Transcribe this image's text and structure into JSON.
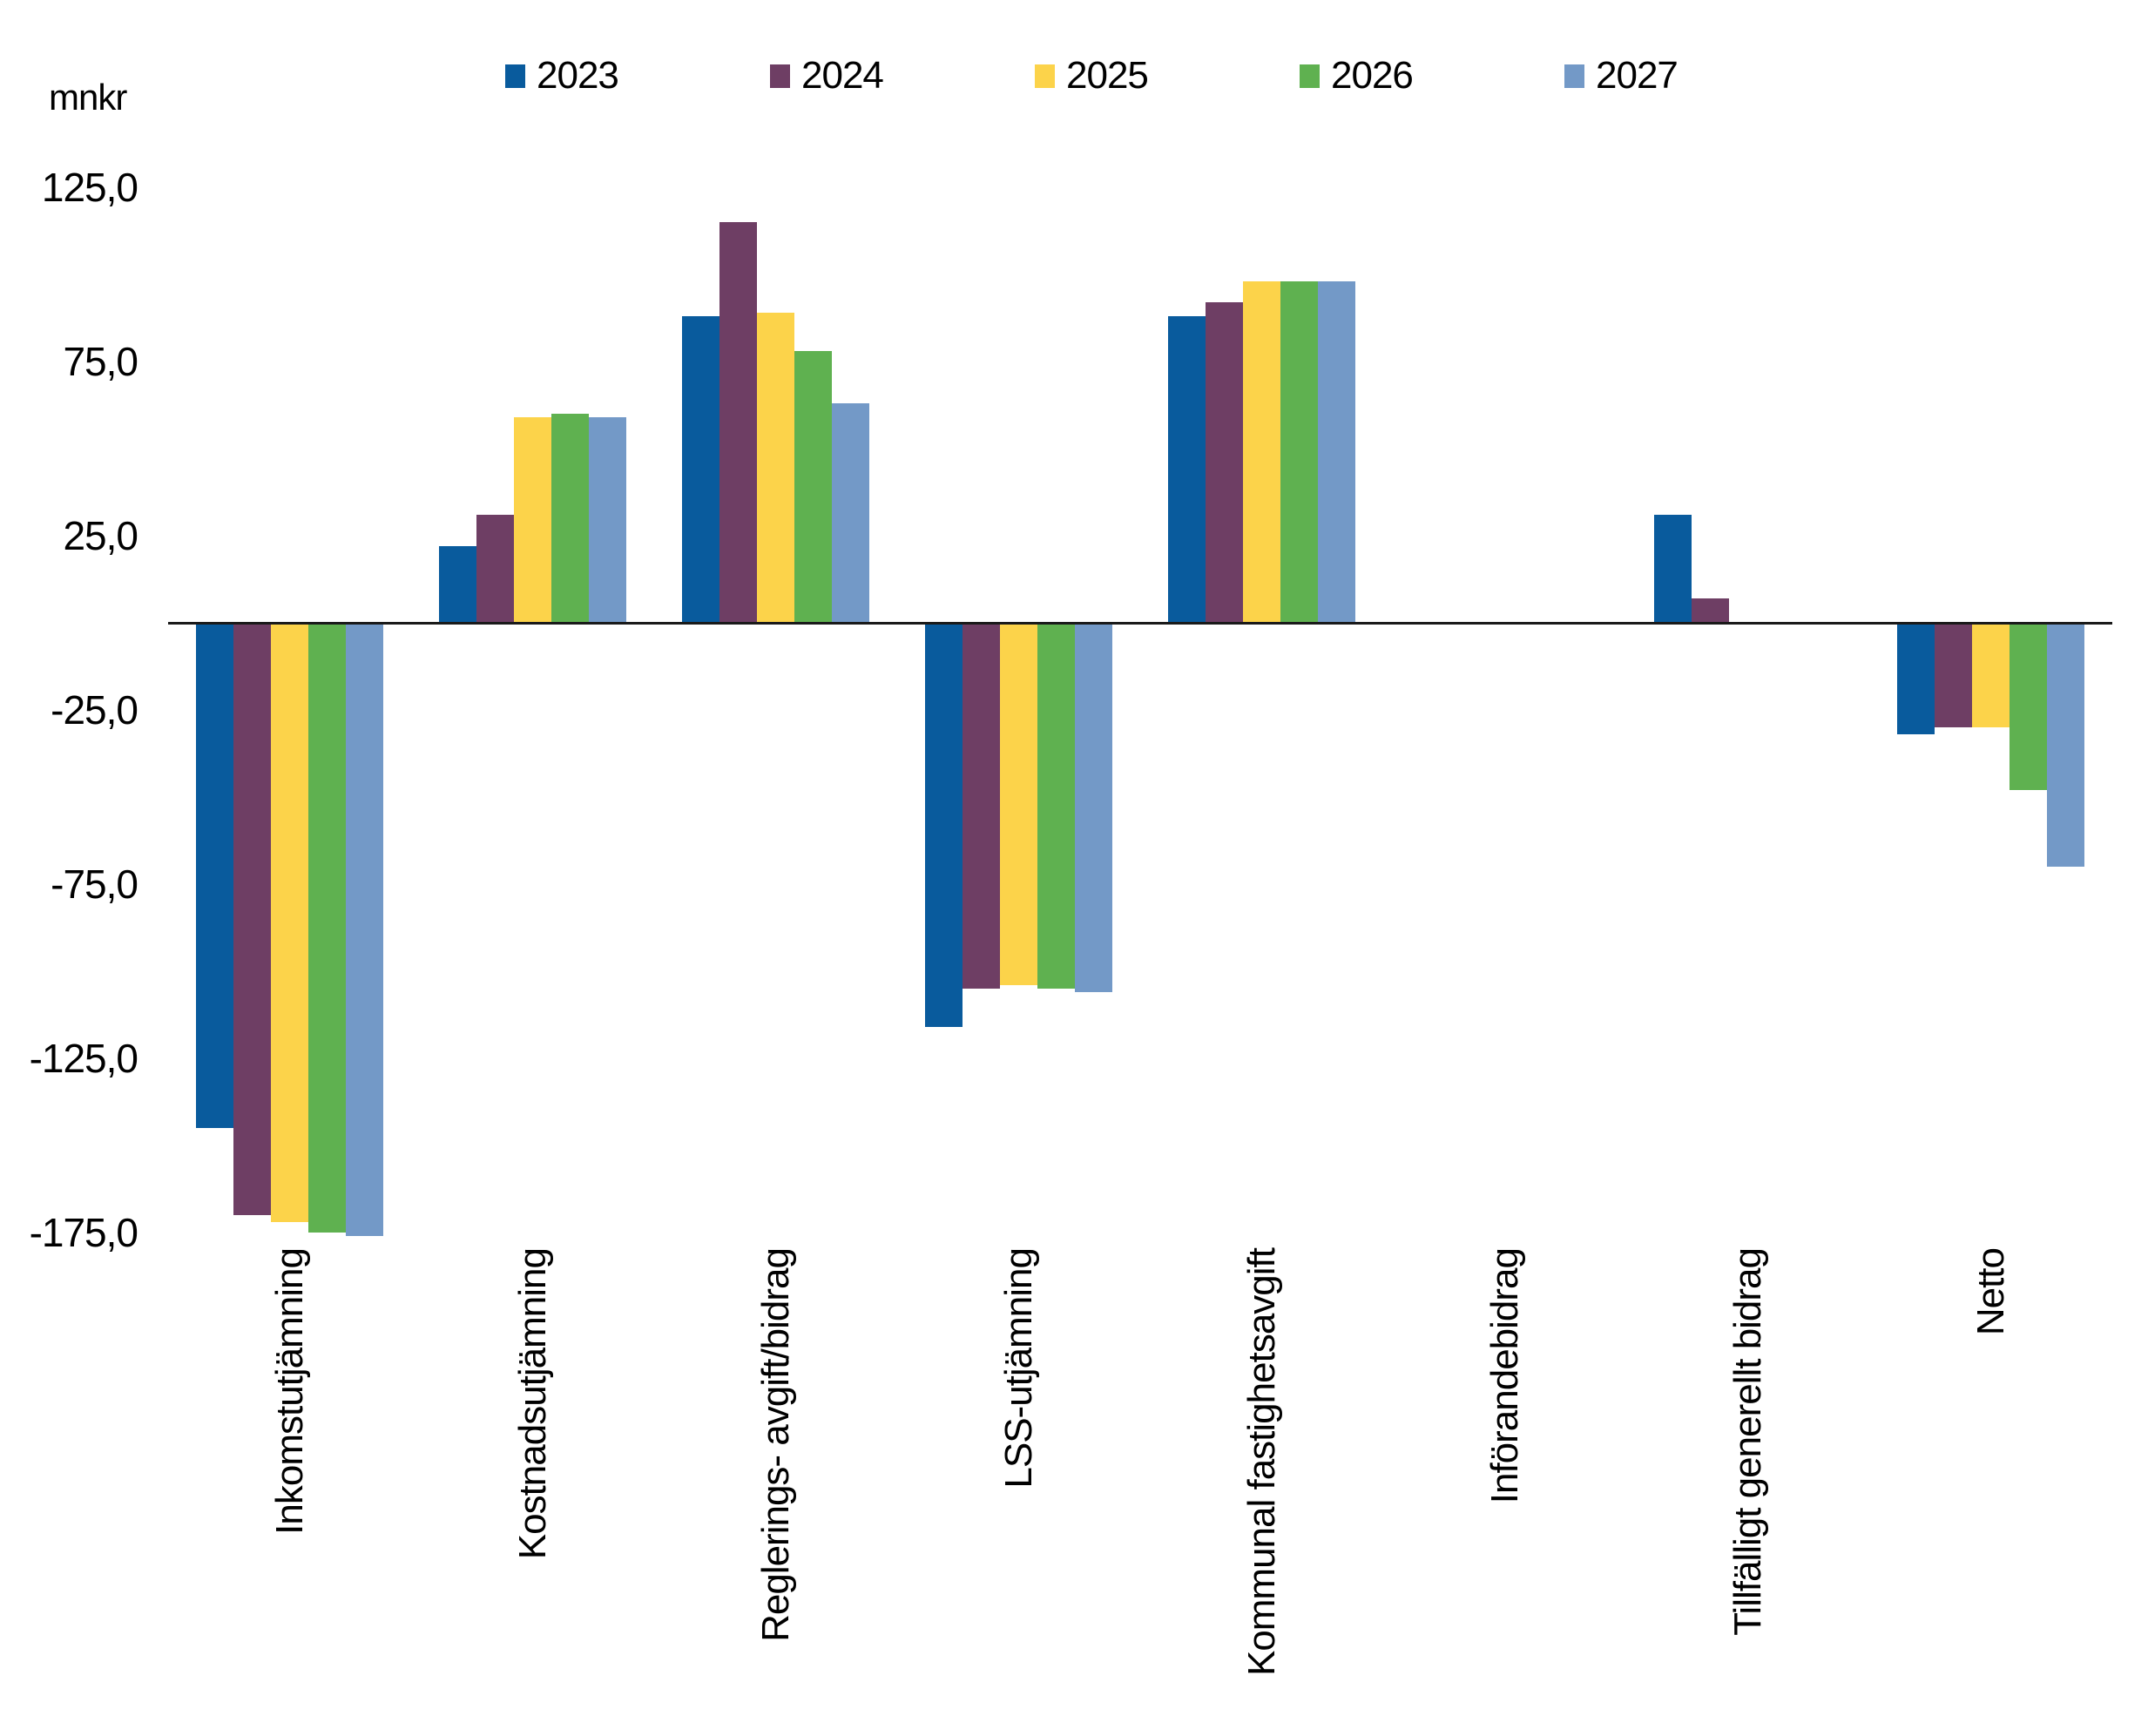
{
  "chart_data": {
    "type": "bar",
    "unit_label": "mnkr",
    "legend_position": "top",
    "grid": false,
    "axis_color": "#1A1A1A",
    "text_color": "#000000",
    "categories": [
      "Inkomstutjämning",
      "Kostnadsutjämning",
      "Reglerings- avgift/bidrag",
      "LSS-utjämning",
      "Kommunal fastighetsavgift",
      "Införandebidrag",
      "Tillfälligt generellt bidrag",
      "Netto"
    ],
    "series": [
      {
        "name": "2023",
        "color": "#095B9D",
        "values": [
          -145,
          22,
          88,
          -116,
          88,
          0,
          31,
          -32
        ]
      },
      {
        "name": "2024",
        "color": "#6E3E64",
        "values": [
          -170,
          31,
          115,
          -105,
          92,
          0,
          7,
          -30
        ]
      },
      {
        "name": "2025",
        "color": "#FCD34A",
        "values": [
          -172,
          59,
          89,
          -104,
          98,
          0,
          0,
          -30
        ]
      },
      {
        "name": "2026",
        "color": "#5FB150",
        "values": [
          -175,
          60,
          78,
          -105,
          98,
          0,
          0,
          -48
        ]
      },
      {
        "name": "2027",
        "color": "#7399C7",
        "values": [
          -176,
          59,
          63,
          -106,
          98,
          0,
          0,
          -70
        ]
      }
    ],
    "y_ticks": [
      {
        "label": "125,0",
        "value": 125
      },
      {
        "label": "75,0",
        "value": 75
      },
      {
        "label": "25,0",
        "value": 25
      },
      {
        "label": "-25,0",
        "value": -25
      },
      {
        "label": "-75,0",
        "value": -75
      },
      {
        "label": "-125,0",
        "value": -125
      },
      {
        "label": "-175,0",
        "value": -175
      }
    ],
    "ylim": [
      -175,
      125
    ]
  }
}
